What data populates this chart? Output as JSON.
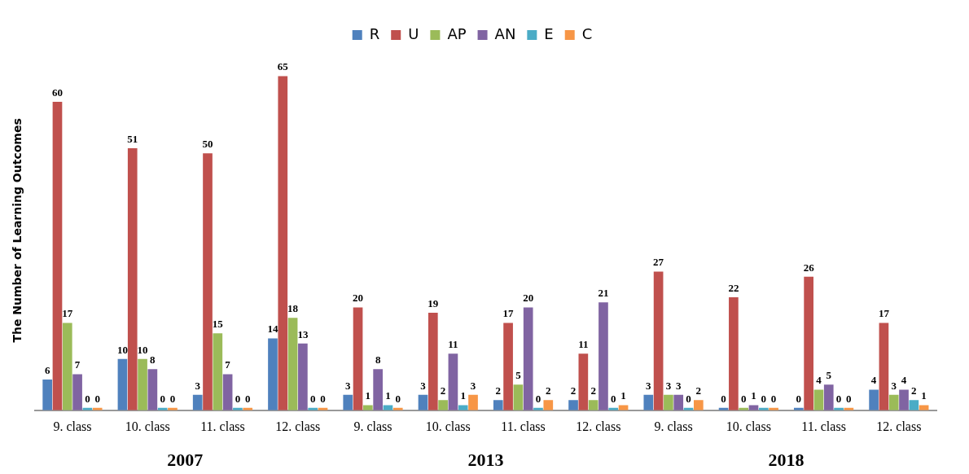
{
  "chart_data": {
    "type": "bar",
    "ylabel": "The Number of Learning Outcomes",
    "categories": [
      "9. class",
      "10. class",
      "11. class",
      "12. class",
      "9. class",
      "10. class",
      "11. class",
      "12. class",
      "9. class",
      "10. class",
      "11. class",
      "12. class"
    ],
    "series": [
      {
        "name": "R",
        "color": "#4f81bd",
        "values": [
          6,
          10,
          3,
          14,
          3,
          3,
          2,
          2,
          3,
          0,
          0,
          4
        ]
      },
      {
        "name": "U",
        "color": "#c0504d",
        "values": [
          60,
          51,
          50,
          65,
          20,
          19,
          17,
          11,
          27,
          22,
          26,
          17
        ]
      },
      {
        "name": "AP",
        "color": "#9bbb59",
        "values": [
          17,
          10,
          15,
          18,
          1,
          2,
          5,
          2,
          3,
          0,
          4,
          3
        ]
      },
      {
        "name": "AN",
        "color": "#8064a2",
        "values": [
          7,
          8,
          7,
          13,
          8,
          11,
          20,
          21,
          3,
          1,
          5,
          4
        ]
      },
      {
        "name": "E",
        "color": "#4bacc6",
        "values": [
          0,
          0,
          0,
          0,
          1,
          1,
          0,
          0,
          0,
          0,
          0,
          2
        ]
      },
      {
        "name": "C",
        "color": "#f79646",
        "values": [
          0,
          0,
          0,
          0,
          0,
          3,
          2,
          1,
          2,
          0,
          0,
          1
        ]
      }
    ],
    "annotations": [
      "2007",
      "2013",
      "2018"
    ],
    "data_labels": true,
    "legend": "top",
    "grid": false,
    "tick_labels": "x"
  }
}
